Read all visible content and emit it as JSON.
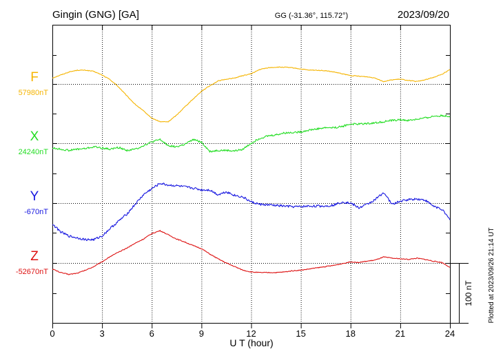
{
  "header": {
    "station": "Gingin (GNG)  [GA]",
    "coords": "GG (-31.36°, 115.72°)",
    "date": "2023/09/20"
  },
  "footer": {
    "plotted": "Plotted at 2023/09/26 21:14 UT"
  },
  "chart_data": {
    "type": "line",
    "xlabel": "U T (hour)",
    "xlim": [
      0,
      24
    ],
    "x_ticks": [
      0,
      3,
      6,
      9,
      12,
      15,
      18,
      21,
      24
    ],
    "x_tick_labels": [
      "0",
      "3",
      "6",
      "9",
      "12",
      "15",
      "18",
      "21",
      "24"
    ],
    "scale_bar": {
      "label": "100 nT",
      "value_nT": 100
    },
    "series": [
      {
        "name": "F",
        "baseline_label": "57980nT",
        "baseline_nT": 57980,
        "color": "#f5b400",
        "x": [
          0,
          0.5,
          1,
          1.5,
          2,
          2.5,
          3,
          3.5,
          4,
          4.5,
          5,
          5.5,
          6,
          6.5,
          7,
          7.5,
          8,
          8.5,
          9,
          9.5,
          10,
          10.5,
          11,
          11.5,
          12,
          12.5,
          13,
          13.5,
          14,
          14.5,
          15,
          15.5,
          16,
          16.5,
          17,
          17.5,
          18,
          18.5,
          19,
          19.5,
          20,
          20.5,
          21,
          21.5,
          22,
          22.5,
          23,
          23.5,
          24
        ],
        "values": [
          57990,
          57995,
          58000,
          58003,
          58003,
          58001,
          57995,
          57987,
          57975,
          57960,
          57946,
          57935,
          57923,
          57917,
          57917,
          57928,
          57942,
          57955,
          57968,
          57977,
          57985,
          57988,
          57990,
          57994,
          57997,
          58004,
          58007,
          58008,
          58008,
          58007,
          58005,
          58003,
          58003,
          58002,
          58000,
          57997,
          57994,
          57993,
          57992,
          57990,
          57984,
          57987,
          57988,
          57986,
          57984,
          57987,
          57991,
          57996,
          58004
        ]
      },
      {
        "name": "X",
        "baseline_label": "24240nT",
        "baseline_nT": 24240,
        "color": "#22dd22",
        "x": [
          0,
          0.5,
          1,
          1.5,
          2,
          2.5,
          3,
          3.5,
          4,
          4.5,
          5,
          5.5,
          6,
          6.5,
          7,
          7.5,
          8,
          8.5,
          9,
          9.5,
          10,
          10.5,
          11,
          11.5,
          12,
          12.5,
          13,
          13.5,
          14,
          14.5,
          15,
          15.5,
          16,
          16.5,
          17,
          17.5,
          18,
          18.5,
          19,
          19.5,
          20,
          20.5,
          21,
          21.5,
          22,
          22.5,
          23,
          23.5,
          24
        ],
        "values": [
          24232,
          24230,
          24228,
          24230,
          24231,
          24234,
          24232,
          24230,
          24233,
          24228,
          24230,
          24236,
          24242,
          24246,
          24236,
          24234,
          24238,
          24246,
          24242,
          24226,
          24228,
          24228,
          24227,
          24230,
          24240,
          24248,
          24252,
          24254,
          24257,
          24258,
          24259,
          24262,
          24264,
          24266,
          24266,
          24268,
          24272,
          24272,
          24273,
          24274,
          24276,
          24278,
          24279,
          24278,
          24280,
          24282,
          24285,
          24286,
          24285
        ]
      },
      {
        "name": "Y",
        "baseline_label": "-670nT",
        "baseline_nT": -670,
        "color": "#1515e0",
        "x": [
          0,
          0.5,
          1,
          1.5,
          2,
          2.5,
          3,
          3.5,
          4,
          4.5,
          5,
          5.5,
          6,
          6.5,
          7,
          7.5,
          8,
          8.5,
          9,
          9.5,
          10,
          10.5,
          11,
          11.5,
          12,
          12.5,
          13,
          13.5,
          14,
          14.5,
          15,
          15.5,
          16,
          16.5,
          17,
          17.5,
          18,
          18.5,
          19,
          19.5,
          20,
          20.5,
          21,
          21.5,
          22,
          22.5,
          23,
          23.5,
          24
        ],
        "values": [
          -705,
          -718,
          -725,
          -728,
          -731,
          -731,
          -725,
          -712,
          -700,
          -688,
          -672,
          -656,
          -646,
          -637,
          -640,
          -641,
          -643,
          -645,
          -648,
          -648,
          -656,
          -651,
          -657,
          -660,
          -668,
          -672,
          -673,
          -674,
          -675,
          -676,
          -676,
          -675,
          -675,
          -675,
          -673,
          -668,
          -670,
          -678,
          -672,
          -664,
          -652,
          -672,
          -667,
          -664,
          -663,
          -665,
          -675,
          -680,
          -698
        ]
      },
      {
        "name": "Z",
        "baseline_label": "-52670nT",
        "baseline_nT": -52670,
        "color": "#dd1111",
        "x": [
          0,
          0.5,
          1,
          1.5,
          2,
          2.5,
          3,
          3.5,
          4,
          4.5,
          5,
          5.5,
          6,
          6.5,
          7,
          7.5,
          8,
          8.5,
          9,
          9.5,
          10,
          10.5,
          11,
          11.5,
          12,
          12.5,
          13,
          13.5,
          14,
          14.5,
          15,
          15.5,
          16,
          16.5,
          17,
          17.5,
          18,
          18.5,
          19,
          19.5,
          20,
          20.5,
          21,
          21.5,
          22,
          22.5,
          23,
          23.5,
          24
        ],
        "values": [
          -52680,
          -52686,
          -52689,
          -52687,
          -52682,
          -52676,
          -52668,
          -52659,
          -52652,
          -52645,
          -52637,
          -52630,
          -52621,
          -52616,
          -52623,
          -52630,
          -52635,
          -52641,
          -52646,
          -52655,
          -52663,
          -52670,
          -52676,
          -52682,
          -52685,
          -52686,
          -52686,
          -52686,
          -52685,
          -52683,
          -52682,
          -52680,
          -52678,
          -52676,
          -52674,
          -52671,
          -52668,
          -52669,
          -52667,
          -52665,
          -52660,
          -52662,
          -52663,
          -52664,
          -52662,
          -52664,
          -52667,
          -52669,
          -52677
        ]
      }
    ]
  }
}
